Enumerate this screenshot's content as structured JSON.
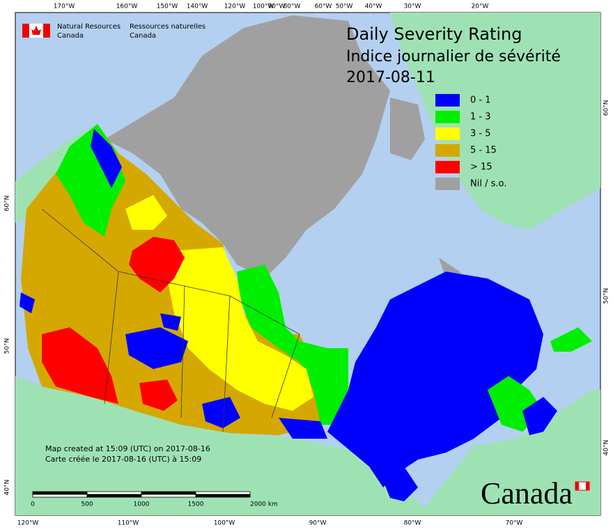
{
  "header": {
    "org_en": "Natural Resources",
    "org_en2": "Canada",
    "org_fr": "Ressources naturelles",
    "org_fr2": "Canada"
  },
  "title": {
    "line1": "Daily Severity Rating",
    "line2": "Indice journalier de sévérité",
    "date": "2017-08-11"
  },
  "legend": [
    {
      "label": "0 - 1",
      "color": "#0000ff"
    },
    {
      "label": "1 - 3",
      "color": "#00ee00"
    },
    {
      "label": "3 - 5",
      "color": "#ffff00"
    },
    {
      "label": "5 - 15",
      "color": "#d4a800"
    },
    {
      "label": "> 15",
      "color": "#ff0000"
    },
    {
      "label": "Nil / s.o.",
      "color": "#a0a0a0"
    }
  ],
  "graticule": {
    "top": [
      "170°W",
      "160°W",
      "150°W",
      "140°W",
      "120°W",
      "100°W",
      "90°W",
      "80°W",
      "60°W",
      "50°W",
      "40°W",
      "30°W",
      "20°W"
    ],
    "bottom": [
      "120°W",
      "110°W",
      "100°W",
      "90°W",
      "80°W",
      "70°W"
    ],
    "left": [
      "60°N",
      "50°N",
      "40°N"
    ],
    "right": [
      "60°N",
      "50°N",
      "40°N"
    ]
  },
  "scale_bar": [
    "0",
    "500",
    "1000",
    "1500",
    "2000  km"
  ],
  "notes": [
    "Map created at 15:09 (UTC) on 2017-08-16",
    "Carte créée le 2017-08-16 (UTC) à 15:09"
  ],
  "wordmark": "Canada"
}
